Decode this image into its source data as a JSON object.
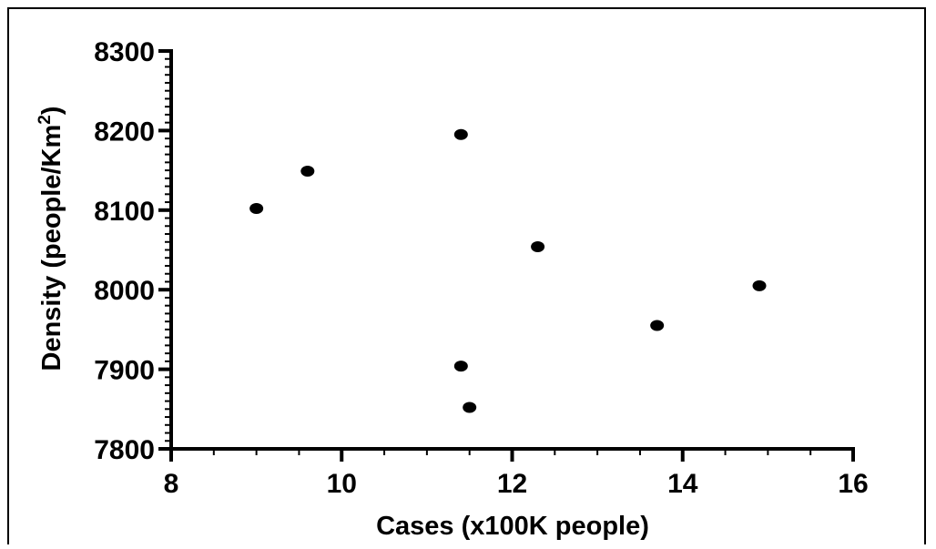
{
  "chart_data": {
    "type": "scatter",
    "title": "",
    "xlabel": "Cases (x100K people)",
    "ylabel_main": "Density (people/Km",
    "ylabel_superscript": "2",
    "ylabel_close": ")",
    "xlim": [
      8,
      16
    ],
    "ylim": [
      7800,
      8300
    ],
    "x_ticks": [
      8,
      10,
      12,
      14,
      16
    ],
    "y_ticks": [
      7800,
      7900,
      8000,
      8100,
      8200,
      8300
    ],
    "x_minor_step": 0.5,
    "y_minor_step": 10,
    "grid": false,
    "legend": "none",
    "marker_color": "#000000",
    "series": [
      {
        "points": [
          {
            "x": 9.0,
            "y": 8102
          },
          {
            "x": 9.6,
            "y": 8149
          },
          {
            "x": 11.4,
            "y": 8195
          },
          {
            "x": 12.3,
            "y": 8054
          },
          {
            "x": 14.9,
            "y": 8005
          },
          {
            "x": 13.7,
            "y": 7955
          },
          {
            "x": 11.4,
            "y": 7904
          },
          {
            "x": 11.5,
            "y": 7852
          }
        ]
      }
    ]
  }
}
